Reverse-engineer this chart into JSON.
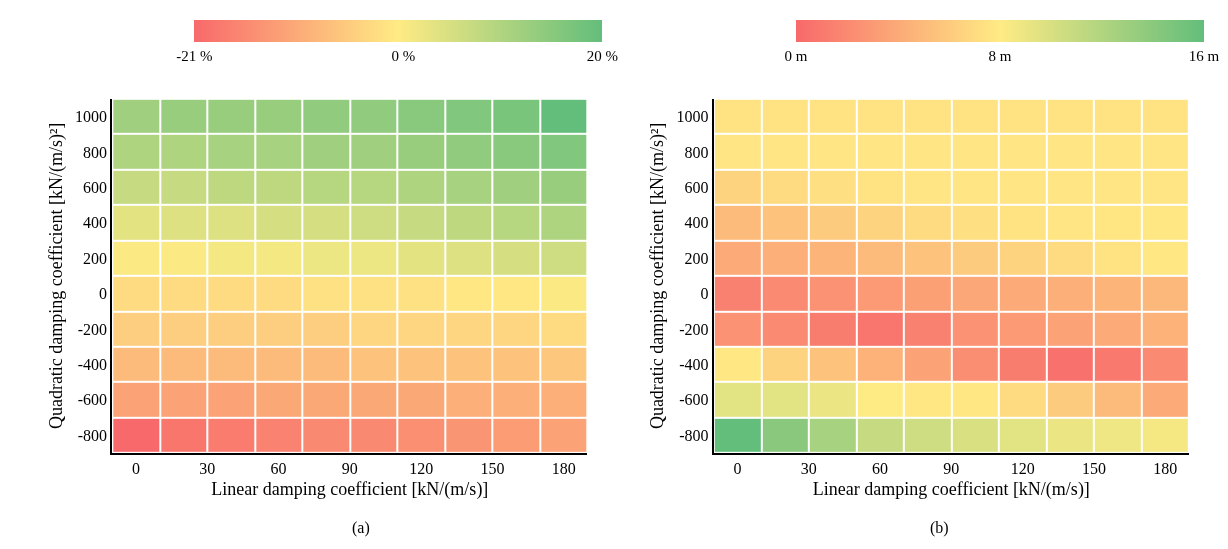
{
  "chart_data": [
    {
      "type": "heatmap",
      "xlabel": "Linear damping coefficient [kN/(m/s)]",
      "ylabel": "Quadratic damping coefficient [kN/(m/s)²]",
      "x": [
        0,
        20,
        40,
        60,
        80,
        100,
        120,
        140,
        160,
        180
      ],
      "xlim": [
        -10,
        190
      ],
      "xticks": [
        0,
        30,
        60,
        90,
        120,
        150,
        180
      ],
      "y_categories": [
        "1000",
        "800",
        "600",
        "400",
        "200",
        "0",
        "-200",
        "-400",
        "-600",
        "-800"
      ],
      "cells": [
        [
          12,
          13,
          13,
          13,
          14,
          14,
          15,
          16,
          17,
          20
        ],
        [
          10,
          10,
          11,
          11,
          12,
          12,
          13,
          14,
          15,
          16
        ],
        [
          7,
          7,
          8,
          8,
          9,
          9,
          10,
          11,
          12,
          13
        ],
        [
          3,
          4,
          4,
          5,
          5,
          6,
          7,
          8,
          9,
          10
        ],
        [
          0,
          0,
          1,
          1,
          2,
          2,
          3,
          4,
          5,
          6
        ],
        [
          -3,
          -3,
          -3,
          -3,
          -2,
          -2,
          -2,
          -1,
          -1,
          0
        ],
        [
          -5,
          -5,
          -5,
          -5,
          -5,
          -4,
          -4,
          -4,
          -4,
          -3
        ],
        [
          -8,
          -8,
          -8,
          -8,
          -8,
          -7,
          -7,
          -7,
          -7,
          -6
        ],
        [
          -12,
          -12,
          -12,
          -11,
          -11,
          -11,
          -11,
          -10,
          -10,
          -10
        ],
        [
          -21,
          -19,
          -18,
          -17,
          -16,
          -16,
          -15,
          -14,
          -13,
          -12
        ]
      ],
      "clim": [
        -21,
        20
      ],
      "cticks": [
        {
          "value": -21,
          "label": "-21 %"
        },
        {
          "value": 0,
          "label": "0 %"
        },
        {
          "value": 20,
          "label": "20 %"
        }
      ],
      "annotations": [
        "(a)"
      ]
    },
    {
      "type": "heatmap",
      "xlabel": "Linear damping coefficient [kN/(m/s)]",
      "ylabel": "Quadratic damping coefficient [kN/(m/s)²]",
      "x": [
        0,
        20,
        40,
        60,
        80,
        100,
        120,
        140,
        160,
        180
      ],
      "xlim": [
        -10,
        190
      ],
      "xticks": [
        0,
        30,
        60,
        90,
        120,
        150,
        180
      ],
      "y_categories": [
        "1000",
        "800",
        "600",
        "400",
        "200",
        "0",
        "-200",
        "-400",
        "-600",
        "-800"
      ],
      "cells": [
        [
          7.5,
          7.5,
          7.5,
          7.5,
          7.5,
          7.5,
          7.5,
          7.5,
          7.5,
          7.5
        ],
        [
          7.6,
          7.6,
          7.6,
          7.6,
          7.6,
          7.6,
          7.6,
          7.6,
          7.6,
          7.6
        ],
        [
          6.5,
          7,
          7.3,
          7.5,
          7.6,
          7.6,
          7.6,
          7.6,
          7.6,
          7.6
        ],
        [
          5,
          5.5,
          6,
          6.5,
          7,
          7.3,
          7.5,
          7.6,
          7.7,
          7.8
        ],
        [
          4,
          4.3,
          4.6,
          5,
          5.5,
          6,
          6.5,
          7,
          7.5,
          7.8
        ],
        [
          1.5,
          2,
          2.5,
          3,
          3.3,
          3.8,
          4,
          4.3,
          4.6,
          4.8
        ],
        [
          2.5,
          2,
          1.2,
          0.8,
          1.5,
          2.5,
          3,
          3.5,
          4,
          4.5
        ],
        [
          7.8,
          6.5,
          5.5,
          4.5,
          3.5,
          2.3,
          1.2,
          0.5,
          1,
          2
        ],
        [
          9.5,
          9.5,
          9,
          8,
          7.8,
          7.8,
          7,
          6,
          5,
          4
        ],
        [
          16,
          14,
          12.5,
          11,
          10.5,
          10,
          9.5,
          9,
          8.8,
          8.5
        ]
      ],
      "clim": [
        0,
        16
      ],
      "cticks": [
        {
          "value": 0,
          "label": "0 m"
        },
        {
          "value": 8,
          "label": "8 m"
        },
        {
          "value": 16,
          "label": "16 m"
        }
      ],
      "annotations": [
        "(b)"
      ]
    }
  ]
}
